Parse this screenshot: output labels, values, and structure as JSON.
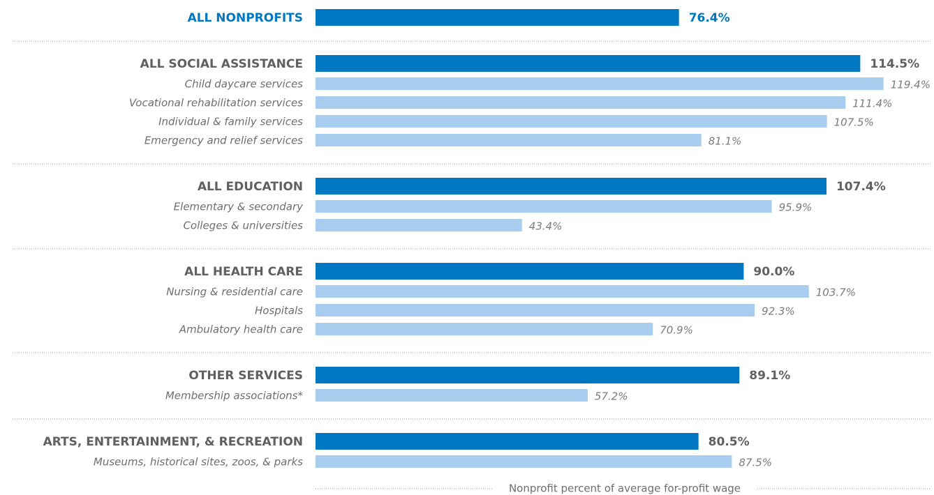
{
  "chart_data": {
    "type": "bar",
    "orientation": "horizontal",
    "x_label": "Nonprofit percent of average for-profit wage",
    "xlim": [
      0,
      130
    ],
    "color": "#0077c0",
    "sub_color": "#a9cdee",
    "groups": [
      {
        "name": "ALL NONPROFITS",
        "value": 76.4,
        "value_label": "76.4%",
        "items": []
      },
      {
        "name": "ALL SOCIAL ASSISTANCE",
        "value": 114.5,
        "value_label": "114.5%",
        "items": [
          {
            "name": "Child daycare services",
            "value": 119.4,
            "value_label": "119.4%"
          },
          {
            "name": "Vocational rehabilitation services",
            "value": 111.4,
            "value_label": "111.4%"
          },
          {
            "name": "Individual & family services",
            "value": 107.5,
            "value_label": "107.5%"
          },
          {
            "name": "Emergency and relief services",
            "value": 81.1,
            "value_label": "81.1%"
          }
        ]
      },
      {
        "name": "ALL EDUCATION",
        "value": 107.4,
        "value_label": "107.4%",
        "items": [
          {
            "name": "Elementary & secondary",
            "value": 95.9,
            "value_label": "95.9%"
          },
          {
            "name": "Colleges & universities",
            "value": 43.4,
            "value_label": "43.4%"
          }
        ]
      },
      {
        "name": "ALL HEALTH CARE",
        "value": 90.0,
        "value_label": "90.0%",
        "items": [
          {
            "name": "Nursing & residential care",
            "value": 103.7,
            "value_label": "103.7%"
          },
          {
            "name": "Hospitals",
            "value": 92.3,
            "value_label": "92.3%"
          },
          {
            "name": "Ambulatory health care",
            "value": 70.9,
            "value_label": "70.9%"
          }
        ]
      },
      {
        "name": "OTHER SERVICES",
        "value": 89.1,
        "value_label": "89.1%",
        "items": [
          {
            "name": "Membership associations*",
            "value": 57.2,
            "value_label": "57.2%"
          }
        ]
      },
      {
        "name": "ARTS, ENTERTAINMENT, & RECREATION",
        "value": 80.5,
        "value_label": "80.5%",
        "items": [
          {
            "name": "Museums, historical sites, zoos, & parks",
            "value": 87.5,
            "value_label": "87.5%"
          }
        ]
      }
    ]
  }
}
